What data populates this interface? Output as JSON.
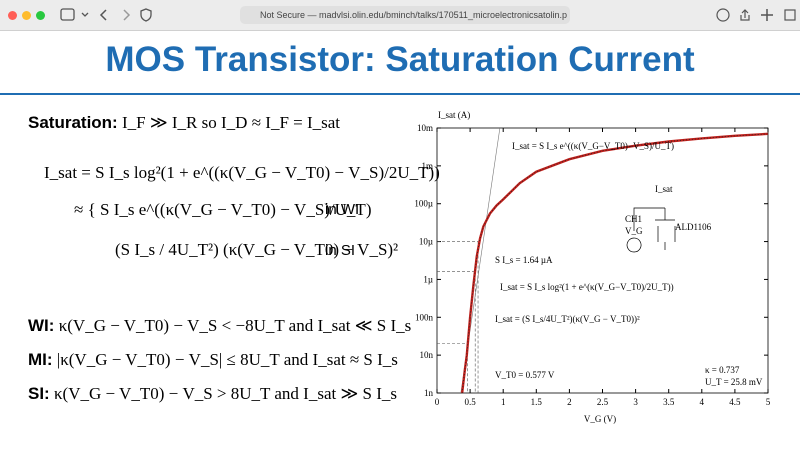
{
  "browser": {
    "url": "Not Secure — madvlsi.olin.edu/bminch/talks/170511_microelectronicsatolin.p"
  },
  "slide": {
    "title": "MOS Transistor: Saturation Current",
    "saturation_label": "Saturation:",
    "saturation_eq": "I_F ≫ I_R  so  I_D ≈ I_F = I_sat",
    "isat_eq": "I_sat = S I_s log²(1 + e^((κ(V_G − V_T0) − V_S)/2U_T))",
    "approx_wi": "≈ { S I_s e^((κ(V_G − V_T0) − V_S)/U_T)",
    "wi_label": "in WI",
    "approx_si": "(S I_s / 4U_T²) (κ(V_G − V_T0) − V_S)²",
    "si_label": "in SI",
    "regions": [
      {
        "name": "WI:",
        "text": "κ(V_G − V_T0) − V_S < −8U_T  and  I_sat ≪ S I_s"
      },
      {
        "name": "MI:",
        "text": "|κ(V_G − V_T0) − V_S| ≤ 8U_T  and  I_sat ≈ S I_s"
      },
      {
        "name": "SI:",
        "text": "κ(V_G − V_T0) − V_S > 8U_T  and  I_sat ≫ S I_s"
      }
    ]
  },
  "chart_data": {
    "type": "line",
    "y_label": "I_sat (A)",
    "x_label": "V_G (V)",
    "log_y": true,
    "xlim": [
      0,
      5
    ],
    "ylim": [
      1e-09,
      0.01
    ],
    "xticks": [
      0,
      0.5,
      1,
      1.5,
      2,
      2.5,
      3,
      3.5,
      4,
      4.5,
      5
    ],
    "yticks": [
      {
        "value": 1e-09,
        "label": "1n"
      },
      {
        "value": 1e-08,
        "label": "10n"
      },
      {
        "value": 1e-07,
        "label": "100n"
      },
      {
        "value": 1e-06,
        "label": "1µ"
      },
      {
        "value": 1e-05,
        "label": "10µ"
      },
      {
        "value": 0.0001,
        "label": "100µ"
      },
      {
        "value": 0.001,
        "label": "1m"
      },
      {
        "value": 0.01,
        "label": "10m"
      }
    ],
    "x": [
      0.38,
      0.42,
      0.45,
      0.5,
      0.55,
      0.6,
      0.65,
      0.7,
      0.8,
      0.9,
      1.0,
      1.25,
      1.5,
      2,
      2.5,
      3,
      3.5,
      4,
      4.5,
      5
    ],
    "series": [
      {
        "name": "I_sat",
        "color": "#c0201c",
        "values": [
          1e-09,
          4e-09,
          1e-08,
          1e-07,
          7e-07,
          4e-06,
          1.2e-05,
          2.5e-05,
          5.5e-05,
          9e-05,
          0.00013,
          0.00035,
          0.0007,
          0.0015,
          0.0025,
          0.0034,
          0.0044,
          0.0053,
          0.0062,
          0.007
        ]
      }
    ],
    "annotations": [
      "I_sat = S I_s e^((κ(V_G−V_T0)−V_S)/U_T)",
      "S I_s = 1.64 µA",
      "I_sat = S I_s log²(1 + e^(κ(V_G−V_T0)/2U_T))",
      "I_sat = (S I_s/4U_T²)(κ(V_G − V_T0))²",
      "V_T0 = 0.577 V",
      "κ = 0.737",
      "U_T = 25.8 mV",
      "I_sat",
      "CH1",
      "V_G",
      "ALD1106"
    ]
  }
}
